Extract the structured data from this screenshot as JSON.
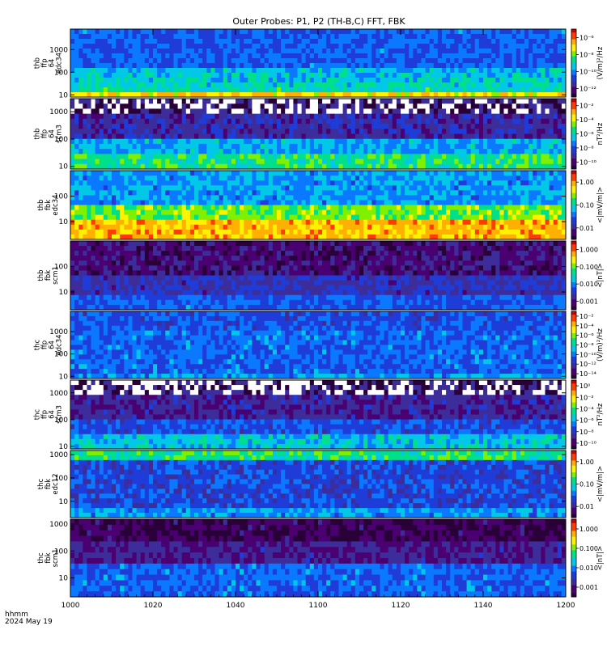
{
  "title": "Outer Probes: P1, P2 (TH-B,C) FFT, FBK",
  "time_label": [
    "hhmm",
    "2024 May 19"
  ],
  "colors": {
    "colormap": [
      "#2a0038",
      "#4a0070",
      "#3c2d9b",
      "#1f3cd8",
      "#0a78ff",
      "#00c8e6",
      "#00e08a",
      "#7ff000",
      "#fff200",
      "#ffb000",
      "#ff3c00",
      "#c80000"
    ]
  },
  "chart_data": {
    "type": "heatmap",
    "x": {
      "range": [
        "1000",
        "1200"
      ],
      "ticks": [
        "1000",
        "1020",
        "1040",
        "1100",
        "1120",
        "1140",
        "1200"
      ],
      "tick_positions_hhmm": [
        0,
        20,
        40,
        60,
        80,
        100,
        120
      ]
    },
    "panels": [
      {
        "label": [
          "thb",
          "ffp",
          "64",
          "edc34"
        ],
        "y_ticks": [
          "1000",
          "100",
          "10"
        ],
        "y_values": [
          1000,
          100,
          10
        ],
        "y_range": [
          8,
          8000
        ],
        "y_scale": "log",
        "colorbar": {
          "unit": "(V/m)²/Hz",
          "ticks": [
            "10⁻⁶",
            "10⁻⁸",
            "10⁻¹⁰",
            "10⁻¹²"
          ],
          "range_exp": [
            -14,
            -5
          ]
        }
      },
      {
        "label": [
          "thb",
          "ffp",
          "64",
          "scm3"
        ],
        "y_ticks": [
          "1000",
          "100",
          "10"
        ],
        "y_values": [
          1000,
          100,
          10
        ],
        "y_range": [
          8,
          3000
        ],
        "y_scale": "log",
        "colorbar": {
          "unit": "nT²/Hz",
          "ticks": [
            "10⁻²",
            "10⁻⁴",
            "10⁻⁶",
            "10⁻⁸",
            "10⁻¹⁰"
          ],
          "range_exp": [
            -11,
            -1
          ]
        }
      },
      {
        "label": [
          "thb",
          "fbk",
          "edc34"
        ],
        "y_ticks": [
          "100",
          "10"
        ],
        "y_values": [
          100,
          10
        ],
        "y_range": [
          2,
          1000
        ],
        "y_scale": "log",
        "colorbar": {
          "unit": "<|mV/m|>",
          "ticks": [
            "1.00",
            "0.10",
            "0.01"
          ],
          "range_exp": [
            -2.5,
            0.5
          ]
        }
      },
      {
        "label": [
          "thb",
          "fbk",
          "scm1"
        ],
        "y_ticks": [
          "100",
          "10"
        ],
        "y_values": [
          100,
          10
        ],
        "y_range": [
          2,
          1000
        ],
        "y_scale": "log",
        "colorbar": {
          "unit": "<|nT|>",
          "ticks": [
            "1.000",
            "0.100",
            "0.010",
            "0.001"
          ],
          "range_exp": [
            -3.1,
            0.2
          ]
        }
      },
      {
        "label": [
          "thc",
          "ffp",
          "64",
          "edc34"
        ],
        "y_ticks": [
          "1000",
          "100",
          "10"
        ],
        "y_values": [
          1000,
          100,
          10
        ],
        "y_range": [
          8,
          8000
        ],
        "y_scale": "log",
        "colorbar": {
          "unit": "(V/m)²/Hz",
          "ticks": [
            "10⁻²",
            "10⁻⁴",
            "10⁻⁶",
            "10⁻⁸",
            "10⁻¹⁰",
            "10⁻¹²",
            "10⁻¹⁴"
          ],
          "range_exp": [
            -15,
            -1
          ]
        }
      },
      {
        "label": [
          "thc",
          "ffp",
          "64",
          "scm3"
        ],
        "y_ticks": [
          "1000",
          "100",
          "10"
        ],
        "y_values": [
          1000,
          100,
          10
        ],
        "y_range": [
          8,
          3000
        ],
        "y_scale": "log",
        "colorbar": {
          "unit": "nT²/Hz",
          "ticks": [
            "10⁰",
            "10⁻²",
            "10⁻⁴",
            "10⁻⁶",
            "10⁻⁸",
            "10⁻¹⁰"
          ],
          "range_exp": [
            -11,
            1
          ]
        }
      },
      {
        "label": [
          "thc",
          "fbk",
          "edc12"
        ],
        "y_ticks": [
          "1000",
          "100",
          "10"
        ],
        "y_values": [
          1000,
          100,
          10
        ],
        "y_range": [
          2,
          1500
        ],
        "y_scale": "log",
        "colorbar": {
          "unit": "<|mV/m|>",
          "ticks": [
            "1.00",
            "0.10",
            "0.01"
          ],
          "range_exp": [
            -2.5,
            0.5
          ]
        }
      },
      {
        "label": [
          "thc",
          "fbk",
          "scm1"
        ],
        "y_ticks": [
          "1000",
          "100",
          "10"
        ],
        "y_values": [
          1000,
          100,
          10
        ],
        "y_range": [
          2,
          1500
        ],
        "y_scale": "log",
        "colorbar": {
          "unit": "<|nT|>",
          "ticks": [
            "1.000",
            "0.100",
            "0.010",
            "0.001"
          ],
          "range_exp": [
            -3.1,
            0.2
          ]
        }
      }
    ]
  }
}
